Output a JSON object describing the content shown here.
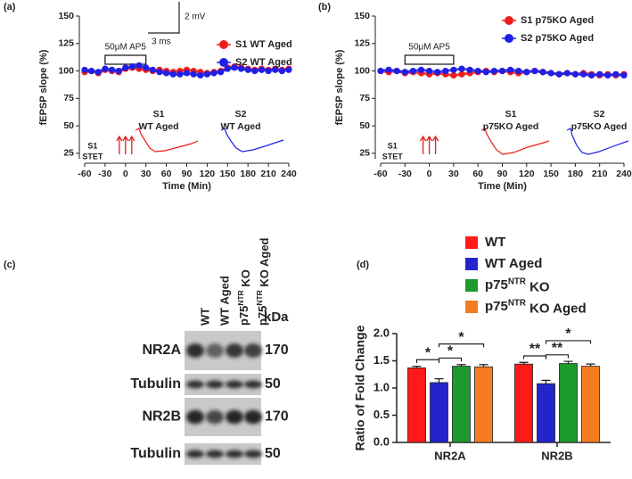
{
  "chart_data": [
    {
      "type": "line",
      "panel": "(a)",
      "xlabel": "Time (Min)",
      "ylabel": "fEPSP slope (%)",
      "x": [
        -60,
        -50,
        -40,
        -30,
        -20,
        -10,
        0,
        10,
        20,
        30,
        40,
        50,
        60,
        70,
        80,
        90,
        100,
        110,
        120,
        130,
        140,
        150,
        160,
        170,
        180,
        190,
        200,
        210,
        220,
        230,
        240
      ],
      "xlim": [
        -60,
        240
      ],
      "xticks": [
        -60,
        -30,
        0,
        30,
        60,
        90,
        120,
        150,
        180,
        210,
        240
      ],
      "ylim": [
        20,
        150
      ],
      "yticks": [
        25,
        50,
        75,
        100,
        125,
        150
      ],
      "series": [
        {
          "name": "S1 WT Aged",
          "color": "#ee1c1c",
          "values": [
            99,
            100,
            98,
            101,
            100,
            99,
            102,
            103,
            102,
            101,
            100,
            101,
            100,
            99,
            100,
            101,
            100,
            99,
            98,
            99,
            100,
            103,
            104,
            103,
            102,
            101,
            102,
            101,
            102,
            101,
            102
          ]
        },
        {
          "name": "S2 WT Aged",
          "color": "#1f1fe6",
          "values": [
            101,
            100,
            99,
            102,
            101,
            100,
            103,
            104,
            105,
            103,
            101,
            99,
            98,
            97,
            97,
            98,
            97,
            96,
            97,
            98,
            99,
            102,
            103,
            102,
            101,
            100,
            101,
            100,
            101,
            100,
            101
          ]
        }
      ],
      "box_label": "50μM AP5",
      "box_range": [
        -30,
        30
      ],
      "stim_label": [
        "S1",
        "STET"
      ],
      "trace_labels": [
        [
          "S1",
          "WT Aged"
        ],
        [
          "S2",
          "WT Aged"
        ]
      ],
      "scale_labels": [
        "2 mV",
        "3 ms"
      ]
    },
    {
      "type": "line",
      "panel": "(b)",
      "xlabel": "Time (Min)",
      "ylabel": "fEPSP slope (%)",
      "x": [
        -60,
        -50,
        -40,
        -30,
        -20,
        -10,
        0,
        10,
        20,
        30,
        40,
        50,
        60,
        70,
        80,
        90,
        100,
        110,
        120,
        130,
        140,
        150,
        160,
        170,
        180,
        190,
        200,
        210,
        220,
        230,
        240
      ],
      "xlim": [
        -60,
        240
      ],
      "xticks": [
        -60,
        -30,
        0,
        30,
        60,
        90,
        120,
        150,
        180,
        210,
        240
      ],
      "ylim": [
        20,
        150
      ],
      "yticks": [
        25,
        50,
        75,
        100,
        125,
        150
      ],
      "series": [
        {
          "name": "S1 p75KO Aged",
          "color": "#ee1c1c",
          "values": [
            100,
            99,
            100,
            98,
            99,
            98,
            97,
            98,
            97,
            96,
            97,
            98,
            99,
            100,
            99,
            100,
            99,
            98,
            99,
            100,
            99,
            98,
            97,
            98,
            97,
            98,
            97,
            96,
            97,
            96,
            97
          ]
        },
        {
          "name": "S2 p75KO Aged",
          "color": "#1f1fe6",
          "values": [
            100,
            101,
            100,
            99,
            100,
            101,
            100,
            99,
            100,
            101,
            102,
            101,
            100,
            99,
            100,
            100,
            101,
            100,
            99,
            100,
            99,
            98,
            97,
            98,
            97,
            97,
            96,
            97,
            96,
            97,
            96
          ]
        }
      ],
      "box_label": "50μM AP5",
      "box_range": [
        -30,
        30
      ],
      "stim_label": [
        "S1",
        "STET"
      ],
      "trace_labels": [
        [
          "S1",
          "p75KO Aged"
        ],
        [
          "S2",
          "p75KO Aged"
        ]
      ]
    },
    {
      "type": "bar",
      "panel": "(d)",
      "ylabel": "Ratio of Fold Change",
      "categories": [
        "NR2A",
        "NR2B"
      ],
      "ylim": [
        0,
        2
      ],
      "yticks": [
        {
          "value": 0,
          "label": "0.0"
        },
        {
          "value": 0.5,
          "label": "0.5"
        },
        {
          "value": 1,
          "label": "1.0"
        },
        {
          "value": 1.5,
          "label": "1.5"
        },
        {
          "value": 2,
          "label": "2.0"
        }
      ],
      "series": [
        {
          "name": "WT",
          "color": "#ff1a1a",
          "values": [
            1.37,
            1.44
          ],
          "errors": [
            0.03,
            0.03
          ]
        },
        {
          "name": "WT Aged",
          "color": "#2424cc",
          "values": [
            1.1,
            1.08
          ],
          "errors": [
            0.07,
            0.06
          ]
        },
        {
          "name": "p75NTR KO",
          "color": "#1c9a2c",
          "values": [
            1.4,
            1.45
          ],
          "errors": [
            0.03,
            0.04
          ]
        },
        {
          "name": "p75NTR KO Aged",
          "color": "#f47b20",
          "values": [
            1.39,
            1.4
          ],
          "errors": [
            0.04,
            0.04
          ]
        }
      ],
      "significance": [
        [
          {
            "pair": [
              0,
              1
            ],
            "label": "*"
          },
          {
            "pair": [
              1,
              2
            ],
            "label": "*"
          },
          {
            "pair": [
              1,
              3
            ],
            "label": "*"
          }
        ],
        [
          {
            "pair": [
              0,
              1
            ],
            "label": "**"
          },
          {
            "pair": [
              1,
              2
            ],
            "label": "**"
          },
          {
            "pair": [
              1,
              3
            ],
            "label": "*"
          }
        ]
      ]
    }
  ],
  "blot": {
    "panel": "(c)",
    "lanes": [
      "WT",
      "WT Aged",
      "p75NTR KO",
      "p75NTR KO Aged"
    ],
    "unit": "kDa",
    "rows": [
      {
        "label": "NR2A",
        "kda": "170"
      },
      {
        "label": "Tubulin",
        "kda": "50"
      },
      {
        "label": "NR2B",
        "kda": "170"
      },
      {
        "label": "Tubulin",
        "kda": "50"
      }
    ]
  }
}
